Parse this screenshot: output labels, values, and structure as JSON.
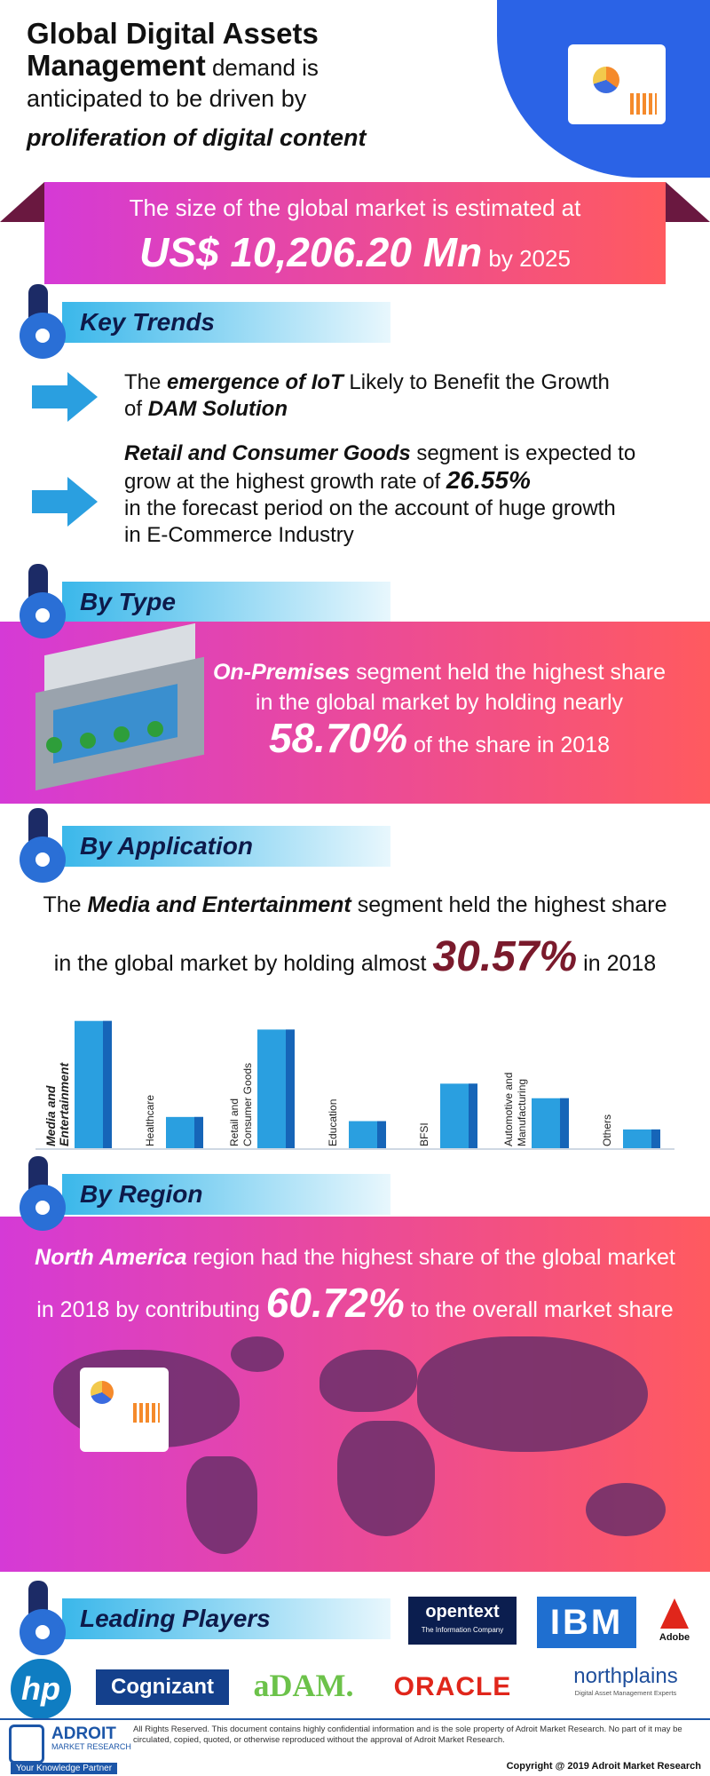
{
  "header": {
    "title_bold": "Global Digital Assets",
    "title_bold2": "Management",
    "title_rest": " demand is",
    "line3": "anticipated to be driven by",
    "line4": "proliferation of digital content"
  },
  "market": {
    "line1": "The size of the global market is estimated at",
    "value": "US$ 10,206.20 Mn",
    "suffix": " by 2025"
  },
  "sections": {
    "key_trends": "Key Trends",
    "by_type": "By Type",
    "by_application": "By Application",
    "by_region": "By Region",
    "leading_players": "Leading Players"
  },
  "trends": {
    "t1_pre": "The ",
    "t1_bold": "emergence of IoT",
    "t1_mid": " Likely to Benefit the Growth",
    "t1_of": "of ",
    "t1_bold2": "DAM Solution",
    "t2_bold": "Retail and Consumer Goods",
    "t2_rest": " segment is expected to",
    "t2_line2": "grow at the highest growth rate of ",
    "t2_val": "26.55%",
    "t2_line3": "in the forecast period on the account of huge growth",
    "t2_line4": "in E-Commerce Industry"
  },
  "type": {
    "bold": "On-Premises",
    "rest": " segment held the highest share",
    "line2": "in the global market by holding nearly",
    "value": "58.70%",
    "suffix": " of the share in 2018"
  },
  "application": {
    "pre": "The ",
    "bold": "Media and Entertainment",
    "rest": " segment held the highest share",
    "line2": "in the global market by holding almost ",
    "value": "30.57%",
    "suffix": " in 2018"
  },
  "chart_data": {
    "type": "bar",
    "categories": [
      "Media and Entertainment",
      "Healthcare",
      "Retail and Consumer Goods",
      "Education",
      "BFSI",
      "Automotive and Manufacturing",
      "Others"
    ],
    "values": [
      30.57,
      7.5,
      28.5,
      6.5,
      15.5,
      12.0,
      4.5
    ],
    "title": "",
    "xlabel": "",
    "ylabel": "",
    "ylim": [
      0,
      32
    ]
  },
  "region": {
    "bold": "North America",
    "rest": " region had the highest share of the global market",
    "line2": "in 2018 by contributing ",
    "value": "60.72%",
    "suffix": " to the overall market share"
  },
  "players": {
    "opentext": "opentext",
    "opentext_sub": "The Information Company",
    "ibm": "IBM",
    "adobe": "Adobe",
    "hp": "hp",
    "cognizant": "Cognizant",
    "adam": "aDAM.",
    "oracle": "ORACLE",
    "northplains": "northplains",
    "northplains_sub": "Digital Asset Management Experts"
  },
  "footer": {
    "brand": "ADROIT",
    "brand_sub": "MARKET RESEARCH",
    "tagline": "Your Knowledge Partner",
    "note": "All Rights Reserved. This document contains highly confidential information and is the sole property of Adroit Market Research. No part of it may be circulated, copied, quoted, or otherwise reproduced without the approval of Adroit Market Research.",
    "copyright": "Copyright @ 2019 Adroit Market Research"
  },
  "colors": {
    "gradient_start": "#d53ad6",
    "gradient_end": "#ff5a5f",
    "accent_blue": "#2a9fe0",
    "dark_value": "#7a1a2c"
  }
}
